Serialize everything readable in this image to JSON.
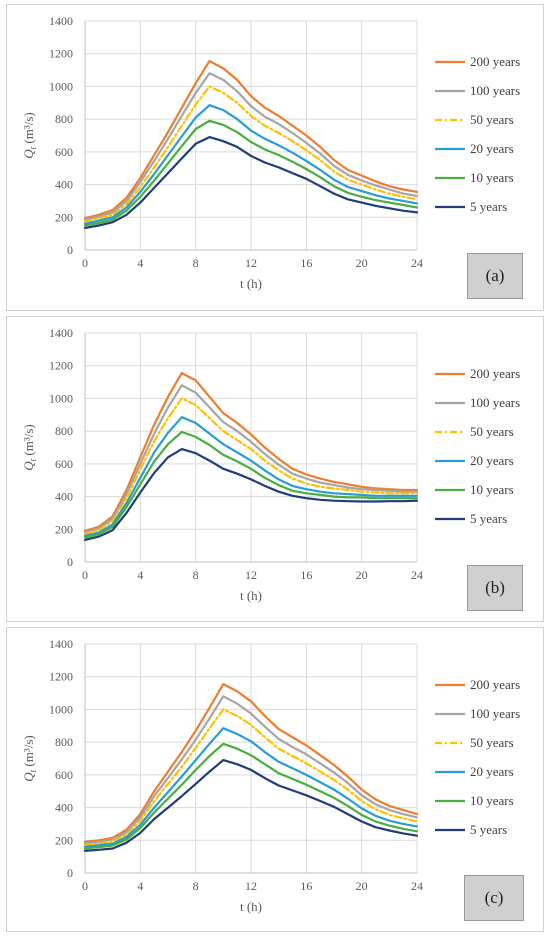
{
  "colors": {
    "200 years": "#ed7d31",
    "100 years": "#a5a5a5",
    "50 years": "#ffc000",
    "20 years": "#2a9bd7",
    "10 years": "#4aad3f",
    "5 years": "#1f3d7a"
  },
  "chart_data": [
    {
      "type": "line",
      "panel_label": "(a)",
      "xlabel": "t (h)",
      "ylabel": "Q",
      "ylabel_sub": "t",
      "ylabel_unit": " (m³/s)",
      "xlim": [
        0,
        24
      ],
      "ylim": [
        0,
        1400
      ],
      "xticks": [
        "0",
        "4",
        "8",
        "12",
        "16",
        "20",
        "24"
      ],
      "yticks": [
        "0",
        "200",
        "400",
        "600",
        "800",
        "1000",
        "1200",
        "1400"
      ],
      "grid": "vertical",
      "legend": "right",
      "x": [
        0,
        1,
        2,
        3,
        4,
        5,
        6,
        7,
        8,
        9,
        10,
        11,
        12,
        13,
        14,
        15,
        16,
        17,
        18,
        19,
        20,
        21,
        22,
        23,
        24
      ],
      "series": [
        {
          "name": "200 years",
          "dash": "solid",
          "values": [
            195,
            215,
            245,
            320,
            440,
            580,
            720,
            870,
            1020,
            1155,
            1110,
            1040,
            940,
            870,
            820,
            760,
            700,
            630,
            550,
            490,
            455,
            420,
            390,
            370,
            355
          ]
        },
        {
          "name": "100 years",
          "dash": "solid",
          "values": [
            185,
            205,
            230,
            300,
            415,
            545,
            680,
            820,
            960,
            1080,
            1040,
            970,
            880,
            815,
            770,
            715,
            655,
            590,
            515,
            460,
            425,
            395,
            370,
            345,
            330
          ]
        },
        {
          "name": "50 years",
          "dash": "dashdot",
          "values": [
            175,
            195,
            215,
            280,
            385,
            505,
            630,
            760,
            890,
            1000,
            960,
            900,
            820,
            760,
            715,
            665,
            610,
            550,
            480,
            430,
            400,
            370,
            345,
            325,
            310
          ]
        },
        {
          "name": "20 years",
          "dash": "solid",
          "values": [
            160,
            180,
            200,
            260,
            355,
            465,
            580,
            695,
            810,
            885,
            855,
            800,
            730,
            680,
            640,
            595,
            545,
            490,
            430,
            385,
            360,
            335,
            315,
            300,
            285
          ]
        },
        {
          "name": "10 years",
          "dash": "solid",
          "values": [
            150,
            165,
            185,
            240,
            325,
            425,
            530,
            635,
            740,
            790,
            765,
            720,
            660,
            615,
            580,
            540,
            495,
            445,
            390,
            350,
            325,
            305,
            290,
            275,
            260
          ]
        },
        {
          "name": "5 years",
          "dash": "solid",
          "values": [
            135,
            150,
            170,
            215,
            290,
            380,
            470,
            560,
            650,
            690,
            665,
            630,
            575,
            535,
            505,
            470,
            435,
            390,
            345,
            310,
            290,
            270,
            255,
            240,
            230
          ]
        }
      ]
    },
    {
      "type": "line",
      "panel_label": "(b)",
      "xlabel": "t (h)",
      "ylabel": "Q",
      "ylabel_sub": "t",
      "ylabel_unit": " (m³/s)",
      "xlim": [
        0,
        24
      ],
      "ylim": [
        0,
        1400
      ],
      "xticks": [
        "0",
        "4",
        "8",
        "12",
        "16",
        "20",
        "24"
      ],
      "yticks": [
        "0",
        "200",
        "400",
        "600",
        "800",
        "1000",
        "1200",
        "1400"
      ],
      "grid": "vertical",
      "legend": "right",
      "x": [
        0,
        1,
        2,
        3,
        4,
        5,
        6,
        7,
        8,
        9,
        10,
        11,
        12,
        13,
        14,
        15,
        16,
        17,
        18,
        19,
        20,
        21,
        22,
        23,
        24
      ],
      "series": [
        {
          "name": "200 years",
          "dash": "solid",
          "values": [
            190,
            215,
            280,
            440,
            640,
            840,
            1010,
            1155,
            1110,
            1010,
            910,
            850,
            780,
            700,
            630,
            570,
            535,
            510,
            490,
            475,
            460,
            450,
            445,
            440,
            440
          ]
        },
        {
          "name": "100 years",
          "dash": "solid",
          "values": [
            180,
            205,
            265,
            415,
            600,
            785,
            945,
            1080,
            1035,
            945,
            855,
            800,
            735,
            660,
            595,
            540,
            510,
            485,
            470,
            455,
            445,
            440,
            435,
            430,
            430
          ]
        },
        {
          "name": "50 years",
          "dash": "dashdot",
          "values": [
            170,
            195,
            250,
            390,
            565,
            740,
            880,
            1000,
            960,
            880,
            800,
            745,
            690,
            620,
            560,
            510,
            480,
            460,
            450,
            440,
            430,
            425,
            420,
            420,
            420
          ]
        },
        {
          "name": "20 years",
          "dash": "solid",
          "values": [
            160,
            180,
            230,
            360,
            515,
            670,
            790,
            885,
            850,
            785,
            720,
            670,
            620,
            560,
            505,
            465,
            445,
            430,
            420,
            415,
            410,
            405,
            405,
            405,
            405
          ]
        },
        {
          "name": "10 years",
          "dash": "solid",
          "values": [
            150,
            170,
            215,
            335,
            475,
            615,
            720,
            795,
            765,
            715,
            655,
            615,
            570,
            515,
            470,
            435,
            420,
            410,
            400,
            395,
            395,
            390,
            390,
            390,
            390
          ]
        },
        {
          "name": "5 years",
          "dash": "solid",
          "values": [
            135,
            155,
            195,
            300,
            425,
            545,
            640,
            690,
            665,
            620,
            570,
            540,
            505,
            465,
            430,
            405,
            390,
            380,
            375,
            372,
            370,
            370,
            372,
            372,
            375
          ]
        }
      ]
    },
    {
      "type": "line",
      "panel_label": "(c)",
      "xlabel": "t (h)",
      "ylabel": "Q",
      "ylabel_sub": "t",
      "ylabel_unit": " (m³/s)",
      "xlim": [
        0,
        24
      ],
      "ylim": [
        0,
        1400
      ],
      "xticks": [
        "0",
        "4",
        "8",
        "12",
        "16",
        "20",
        "24"
      ],
      "yticks": [
        "0",
        "200",
        "400",
        "600",
        "800",
        "1000",
        "1200",
        "1400"
      ],
      "grid": "vertical",
      "legend": "right",
      "x": [
        0,
        1,
        2,
        3,
        4,
        5,
        6,
        7,
        8,
        9,
        10,
        11,
        12,
        13,
        14,
        15,
        16,
        17,
        18,
        19,
        20,
        21,
        22,
        23,
        24
      ],
      "series": [
        {
          "name": "200 years",
          "dash": "solid",
          "values": [
            190,
            200,
            215,
            265,
            360,
            500,
            620,
            740,
            870,
            1010,
            1155,
            1110,
            1050,
            960,
            880,
            830,
            780,
            720,
            660,
            590,
            510,
            450,
            410,
            385,
            360
          ]
        },
        {
          "name": "100 years",
          "dash": "solid",
          "values": [
            180,
            190,
            205,
            250,
            340,
            470,
            580,
            695,
            815,
            945,
            1080,
            1035,
            975,
            895,
            820,
            770,
            725,
            670,
            615,
            550,
            475,
            420,
            385,
            360,
            340
          ]
        },
        {
          "name": "50 years",
          "dash": "dashdot",
          "values": [
            170,
            180,
            195,
            235,
            320,
            440,
            545,
            650,
            765,
            885,
            1000,
            960,
            905,
            830,
            760,
            715,
            670,
            620,
            570,
            510,
            440,
            390,
            355,
            335,
            315
          ]
        },
        {
          "name": "20 years",
          "dash": "solid",
          "values": [
            160,
            170,
            180,
            220,
            295,
            400,
            495,
            590,
            690,
            790,
            885,
            850,
            805,
            740,
            680,
            640,
            600,
            555,
            510,
            455,
            395,
            350,
            320,
            300,
            285
          ]
        },
        {
          "name": "10 years",
          "dash": "solid",
          "values": [
            150,
            158,
            168,
            205,
            275,
            370,
            455,
            540,
            630,
            715,
            790,
            760,
            720,
            665,
            610,
            575,
            540,
            500,
            460,
            410,
            355,
            315,
            290,
            270,
            255
          ]
        },
        {
          "name": "5 years",
          "dash": "solid",
          "values": [
            135,
            142,
            150,
            185,
            245,
            330,
            400,
            470,
            545,
            620,
            690,
            665,
            630,
            580,
            535,
            505,
            475,
            440,
            405,
            360,
            315,
            280,
            260,
            242,
            228
          ]
        }
      ]
    }
  ]
}
